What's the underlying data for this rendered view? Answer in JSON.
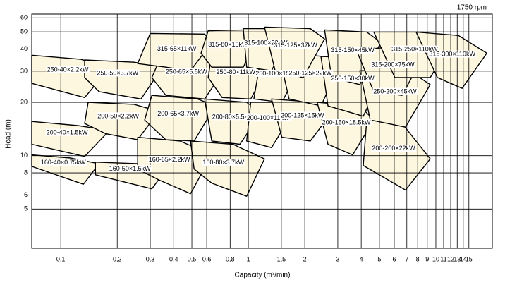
{
  "chart_data": {
    "type": "region",
    "annotation": "1750 rpm",
    "xlabel": "Capacity (m³/min)",
    "ylabel": "Head (m)",
    "xscale": "log",
    "yscale": "log",
    "xlim": [
      0.07,
      20
    ],
    "ylim": [
      3,
      63
    ],
    "xticks": [
      {
        "value": 0.1,
        "label": "0,1"
      },
      {
        "value": 0.2,
        "label": "0,2"
      },
      {
        "value": 0.3,
        "label": "0,3"
      },
      {
        "value": 0.4,
        "label": "0,4"
      },
      {
        "value": 0.5,
        "label": "0,5"
      },
      {
        "value": 0.6,
        "label": "0,6"
      },
      {
        "value": 0.8,
        "label": "0,8"
      },
      1,
      {
        "value": 1.5,
        "label": "1,5"
      },
      2,
      3,
      4,
      5,
      6,
      7,
      8,
      9,
      10,
      11,
      12,
      13,
      14,
      15
    ],
    "yticks": [
      5,
      6,
      8,
      10,
      20,
      30,
      40,
      50,
      60
    ],
    "grid": true,
    "fill_color": "#fdf7e0",
    "line_color": "#000000",
    "series": [
      {
        "name": "160-40×0.75kW",
        "x": [
          0.07,
          0.113,
          0.16,
          0.132,
          0.07
        ],
        "y": [
          10.1,
          9.7,
          9.0,
          6.9,
          8.7
        ]
      },
      {
        "name": "200-40×1.5kW",
        "x": [
          0.07,
          0.123,
          0.182,
          0.134,
          0.07
        ],
        "y": [
          15.6,
          14.8,
          13.9,
          9.9,
          11.6
        ]
      },
      {
        "name": "250-40×2.2kW",
        "x": [
          0.07,
          0.128,
          0.182,
          0.134,
          0.07
        ],
        "y": [
          36.9,
          35.0,
          31.3,
          21.3,
          25.6
        ]
      },
      {
        "name": "160-50×1.5kW",
        "x": [
          0.153,
          0.268,
          0.363,
          0.306,
          0.153
        ],
        "y": [
          9.2,
          9.0,
          8.3,
          6.5,
          7.8
        ]
      },
      {
        "name": "250-50×3.7kW",
        "x": [
          0.134,
          0.246,
          0.348,
          0.268,
          0.16,
          0.134
        ],
        "y": [
          34.7,
          33.7,
          31.6,
          20.9,
          23.0,
          27.6
        ]
      },
      {
        "name": "200-50×2.2kW",
        "x": [
          0.14,
          0.246,
          0.333,
          0.257,
          0.174,
          0.134
        ],
        "y": [
          20.0,
          19.5,
          17.8,
          12.3,
          13.3,
          15.2
        ]
      },
      {
        "name": "160-65×2.2kW",
        "x": [
          0.257,
          0.432,
          0.638,
          0.492,
          0.333,
          0.257
        ],
        "y": [
          12.7,
          12.1,
          10.1,
          6.1,
          7.3,
          8.4
        ]
      },
      {
        "name": "200-65×3.7kW",
        "x": [
          0.306,
          0.536,
          0.666,
          0.514,
          0.363,
          0.28
        ],
        "y": [
          21.9,
          20.9,
          19.1,
          12.1,
          12.3,
          15.9
        ]
      },
      {
        "name": "250-65×5.5kW",
        "x": [
          0.348,
          0.611,
          0.758,
          0.585,
          0.363,
          0.306
        ],
        "y": [
          37.9,
          36.3,
          31.6,
          20.9,
          21.9,
          27.6
        ]
      },
      {
        "name": "315-65×11kW",
        "x": [
          0.3,
          0.585,
          0.638,
          0.492,
          0.363,
          0.257
        ],
        "y": [
          49.0,
          48.6,
          43.6,
          30.2,
          31.6,
          33.1
        ]
      },
      {
        "name": "160-80×3.7kW",
        "x": [
          0.492,
          0.827,
          1.22,
          0.98,
          0.638,
          0.514
        ],
        "y": [
          12.1,
          11.6,
          9.6,
          5.9,
          7.0,
          8.4
        ]
      },
      {
        "name": "200-80×5.5kW",
        "x": [
          0.585,
          0.98,
          1.17,
          0.902,
          0.638
        ],
        "y": [
          20.9,
          20.0,
          17.5,
          11.6,
          12.1
        ]
      },
      {
        "name": "250-80×11kW",
        "x": [
          0.638,
          1.07,
          1.27,
          1.03,
          0.726,
          0.611
        ],
        "y": [
          37.9,
          36.3,
          31.6,
          20.9,
          21.3,
          27.6
        ]
      },
      {
        "name": "315-80×15kW",
        "x": [
          0.611,
          0.98,
          1.12,
          0.94,
          0.638,
          0.56
        ],
        "y": [
          50.8,
          51.3,
          45.6,
          31.6,
          31.6,
          37.9
        ]
      },
      {
        "name": "200-100×11kW",
        "x": [
          1.03,
          1.45,
          1.73,
          1.33,
          0.98
        ],
        "y": [
          20.0,
          20.0,
          17.5,
          11.1,
          12.1
        ]
      },
      {
        "name": "250-100×15kW",
        "x": [
          1.17,
          1.65,
          1.88,
          1.51,
          1.07
        ],
        "y": [
          36.3,
          35.6,
          31.6,
          20.0,
          20.9
        ]
      },
      {
        "name": "315-100×22kW",
        "x": [
          0.94,
          1.45,
          1.65,
          1.33,
          0.98
        ],
        "y": [
          52.2,
          52.2,
          47.7,
          30.2,
          31.6
        ]
      },
      {
        "name": "200-125×15kW",
        "x": [
          1.33,
          2.33,
          2.78,
          2.14,
          1.51
        ],
        "y": [
          20.9,
          20.0,
          17.5,
          12.1,
          12.7
        ]
      },
      {
        "name": "250-125×22kW",
        "x": [
          1.45,
          2.55,
          3.03,
          2.44,
          1.65
        ],
        "y": [
          37.9,
          36.3,
          31.6,
          19.1,
          20.9
        ]
      },
      {
        "name": "315-125×37kW",
        "x": [
          1.22,
          2.14,
          2.55,
          1.96,
          1.39
        ],
        "y": [
          53.2,
          52.2,
          45.6,
          27.6,
          30.2
        ]
      },
      {
        "name": "200-150×18.5kW",
        "x": [
          2.33,
          3.93,
          4.67,
          3.6,
          2.66
        ],
        "y": [
          20.0,
          19.1,
          15.9,
          10.1,
          11.6
        ]
      },
      {
        "name": "250-150×30kW",
        "x": [
          2.44,
          4.28,
          5.32,
          4.1,
          2.66
        ],
        "y": [
          36.3,
          35.6,
          30.2,
          16.7,
          19.1
        ]
      },
      {
        "name": "315-150×45kW",
        "x": [
          2.55,
          4.28,
          5.09,
          3.93,
          2.78
        ],
        "y": [
          51.3,
          49.9,
          43.6,
          25.2,
          27.6
        ]
      },
      {
        "name": "200-200×22kW",
        "x": [
          4.28,
          6.6,
          9.33,
          6.89,
          4.1
        ],
        "y": [
          15.9,
          15.2,
          9.6,
          6.4,
          8.8
        ]
      },
      {
        "name": "250-200×45kW",
        "x": [
          3.93,
          7.2,
          9.33,
          6.89,
          4.47
        ],
        "y": [
          30.2,
          30.2,
          25.2,
          14.5,
          15.9
        ]
      },
      {
        "name": "315-200×75kW",
        "x": [
          3.76,
          7.2,
          8.55,
          6.6,
          4.67
        ],
        "y": [
          39.7,
          41.6,
          36.3,
          21.9,
          23.0
        ]
      },
      {
        "name": "315-250×110kW",
        "x": [
          4.67,
          8.55,
          12.1,
          9.33,
          6.05
        ],
        "y": [
          49.9,
          49.9,
          43.6,
          27.6,
          27.6
        ]
      },
      {
        "name": "315-300×110kW",
        "x": [
          7.85,
          13.2,
          18.7,
          13.8,
          10.2
        ],
        "y": [
          49.9,
          47.7,
          37.9,
          24.0,
          27.6
        ]
      }
    ]
  }
}
